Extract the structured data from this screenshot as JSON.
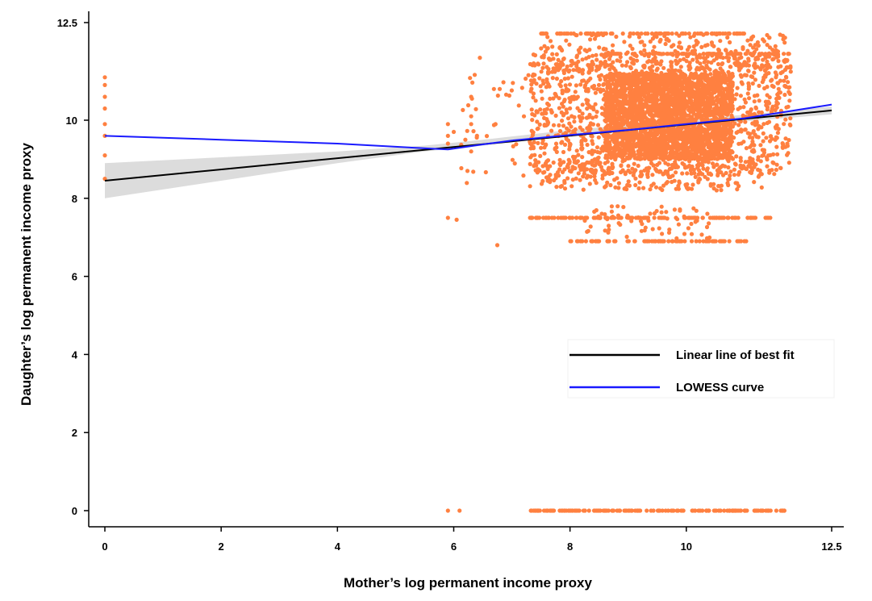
{
  "chart_data": {
    "type": "scatter",
    "title": "",
    "xlabel": "Mother’s log permanent income proxy",
    "ylabel": "Daughter’s log permanent income proxy",
    "xlim": [
      0,
      12.5
    ],
    "ylim": [
      0,
      12.5
    ],
    "x_ticks": [
      {
        "value": 0,
        "label": "0"
      },
      {
        "value": 2,
        "label": "2"
      },
      {
        "value": 4,
        "label": "4"
      },
      {
        "value": 6,
        "label": "6"
      },
      {
        "value": 8,
        "label": "8"
      },
      {
        "value": 10,
        "label": "10"
      },
      {
        "value": 12.5,
        "label": "12.5"
      }
    ],
    "y_ticks": [
      {
        "value": 0,
        "label": "0"
      },
      {
        "value": 2,
        "label": "2"
      },
      {
        "value": 4,
        "label": "4"
      },
      {
        "value": 6,
        "label": "6"
      },
      {
        "value": 8,
        "label": "8"
      },
      {
        "value": 10,
        "label": "10"
      },
      {
        "value": 12.5,
        "label": "12.5"
      }
    ],
    "grid": false,
    "legend_position": "right",
    "colors": {
      "points": "#ff8040",
      "fit_line": "#000000",
      "ci_band": "#bfbfbf",
      "lowess": "#1a1aff"
    },
    "legend": [
      {
        "label": "Linear line of best fit",
        "color": "#000000"
      },
      {
        "label": "LOWESS curve",
        "color": "#1a1aff"
      }
    ],
    "fit_line": {
      "x": [
        0,
        12.5
      ],
      "y": [
        8.45,
        10.25
      ]
    },
    "ci_band": {
      "x": [
        0,
        2,
        4,
        5.5,
        6.5,
        8,
        10,
        12.5
      ],
      "lower": [
        8.0,
        8.45,
        8.9,
        9.2,
        9.35,
        9.6,
        9.85,
        10.15
      ],
      "upper": [
        8.9,
        9.05,
        9.2,
        9.35,
        9.5,
        9.75,
        10.0,
        10.35
      ]
    },
    "lowess": {
      "x": [
        0,
        2,
        4,
        5,
        5.9,
        6.5,
        7,
        8,
        9,
        10,
        11,
        12.5
      ],
      "y": [
        9.6,
        9.5,
        9.4,
        9.32,
        9.25,
        9.38,
        9.48,
        9.62,
        9.75,
        9.9,
        10.05,
        10.4
      ]
    },
    "scatter_series": [
      {
        "name": "dense_cluster",
        "kind": "uniform",
        "n": 2600,
        "x_range": [
          8.6,
          10.8
        ],
        "y_range": [
          9.0,
          11.2
        ]
      },
      {
        "name": "wide_cluster",
        "kind": "uniform",
        "n": 1300,
        "x_range": [
          7.3,
          11.8
        ],
        "y_range": [
          8.6,
          11.7
        ]
      },
      {
        "name": "upper_spread",
        "kind": "uniform",
        "n": 260,
        "x_range": [
          7.5,
          11.7
        ],
        "y_range": [
          11.2,
          12.2
        ]
      },
      {
        "name": "lower_spread",
        "kind": "uniform",
        "n": 200,
        "x_range": [
          7.5,
          11.3
        ],
        "y_range": [
          8.2,
          8.9
        ]
      },
      {
        "name": "low_sparse",
        "kind": "uniform",
        "n": 70,
        "x_range": [
          8.2,
          10.4
        ],
        "y_range": [
          6.9,
          7.8
        ]
      },
      {
        "name": "sparse_left",
        "kind": "uniform",
        "n": 40,
        "x_range": [
          6.1,
          7.4
        ],
        "y_range": [
          8.3,
          11.4
        ]
      },
      {
        "name": "row_12_2",
        "kind": "row",
        "y": 12.22,
        "x_range": [
          7.5,
          11.0
        ],
        "n": 90
      },
      {
        "name": "row_11_7",
        "kind": "row",
        "y": 11.7,
        "x_range": [
          8.5,
          11.8
        ],
        "n": 80
      },
      {
        "name": "row_7_5",
        "kind": "row",
        "y": 7.5,
        "x_range": [
          7.3,
          11.5
        ],
        "n": 130
      },
      {
        "name": "row_6_9",
        "kind": "row",
        "y": 6.9,
        "x_range": [
          8.0,
          11.1
        ],
        "n": 80
      },
      {
        "name": "row_0",
        "kind": "row",
        "y": 0,
        "x_range": [
          7.3,
          11.7
        ],
        "n": 160
      },
      {
        "name": "x_zero_points",
        "kind": "points",
        "x": [
          0,
          0,
          0,
          0,
          0,
          0,
          0,
          0
        ],
        "y": [
          11.1,
          10.9,
          10.6,
          10.3,
          9.9,
          9.6,
          9.1,
          8.5
        ]
      },
      {
        "name": "misc_points",
        "kind": "points",
        "x": [
          5.9,
          5.9,
          5.9,
          5.9,
          6.1,
          6.3,
          6.05,
          6.45,
          6.75,
          6.3,
          5.9,
          6.0,
          6.3,
          6.3,
          6.2,
          6.4
        ],
        "y": [
          9.9,
          9.6,
          7.5,
          0,
          0,
          10.6,
          7.45,
          11.6,
          6.8,
          9.2,
          9.4,
          9.7,
          10.1,
          9.9,
          9.5,
          9.6
        ]
      }
    ]
  }
}
